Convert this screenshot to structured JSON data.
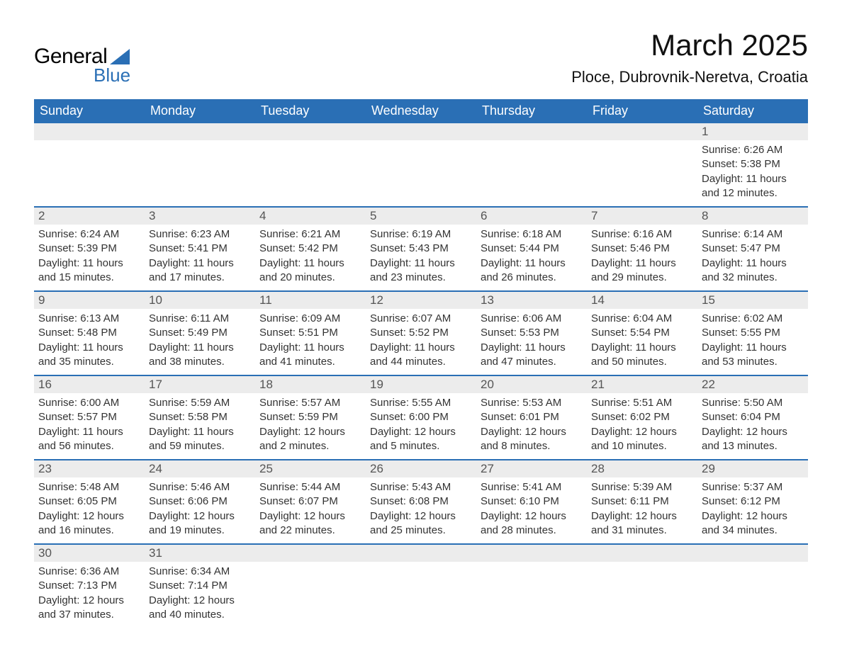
{
  "logo": {
    "general": "General",
    "blue": "Blue"
  },
  "title": "March 2025",
  "location": "Ploce, Dubrovnik-Neretva, Croatia",
  "colors": {
    "header_bg": "#2a6fb5",
    "header_fg": "#ffffff",
    "daynum_bg": "#ececec",
    "row_divider": "#2a6fb5",
    "text": "#333333",
    "logo_blue": "#2a6fb5"
  },
  "day_headers": [
    "Sunday",
    "Monday",
    "Tuesday",
    "Wednesday",
    "Thursday",
    "Friday",
    "Saturday"
  ],
  "weeks": [
    [
      null,
      null,
      null,
      null,
      null,
      null,
      {
        "n": "1",
        "sunrise": "6:26 AM",
        "sunset": "5:38 PM",
        "daylight": "11 hours and 12 minutes."
      }
    ],
    [
      {
        "n": "2",
        "sunrise": "6:24 AM",
        "sunset": "5:39 PM",
        "daylight": "11 hours and 15 minutes."
      },
      {
        "n": "3",
        "sunrise": "6:23 AM",
        "sunset": "5:41 PM",
        "daylight": "11 hours and 17 minutes."
      },
      {
        "n": "4",
        "sunrise": "6:21 AM",
        "sunset": "5:42 PM",
        "daylight": "11 hours and 20 minutes."
      },
      {
        "n": "5",
        "sunrise": "6:19 AM",
        "sunset": "5:43 PM",
        "daylight": "11 hours and 23 minutes."
      },
      {
        "n": "6",
        "sunrise": "6:18 AM",
        "sunset": "5:44 PM",
        "daylight": "11 hours and 26 minutes."
      },
      {
        "n": "7",
        "sunrise": "6:16 AM",
        "sunset": "5:46 PM",
        "daylight": "11 hours and 29 minutes."
      },
      {
        "n": "8",
        "sunrise": "6:14 AM",
        "sunset": "5:47 PM",
        "daylight": "11 hours and 32 minutes."
      }
    ],
    [
      {
        "n": "9",
        "sunrise": "6:13 AM",
        "sunset": "5:48 PM",
        "daylight": "11 hours and 35 minutes."
      },
      {
        "n": "10",
        "sunrise": "6:11 AM",
        "sunset": "5:49 PM",
        "daylight": "11 hours and 38 minutes."
      },
      {
        "n": "11",
        "sunrise": "6:09 AM",
        "sunset": "5:51 PM",
        "daylight": "11 hours and 41 minutes."
      },
      {
        "n": "12",
        "sunrise": "6:07 AM",
        "sunset": "5:52 PM",
        "daylight": "11 hours and 44 minutes."
      },
      {
        "n": "13",
        "sunrise": "6:06 AM",
        "sunset": "5:53 PM",
        "daylight": "11 hours and 47 minutes."
      },
      {
        "n": "14",
        "sunrise": "6:04 AM",
        "sunset": "5:54 PM",
        "daylight": "11 hours and 50 minutes."
      },
      {
        "n": "15",
        "sunrise": "6:02 AM",
        "sunset": "5:55 PM",
        "daylight": "11 hours and 53 minutes."
      }
    ],
    [
      {
        "n": "16",
        "sunrise": "6:00 AM",
        "sunset": "5:57 PM",
        "daylight": "11 hours and 56 minutes."
      },
      {
        "n": "17",
        "sunrise": "5:59 AM",
        "sunset": "5:58 PM",
        "daylight": "11 hours and 59 minutes."
      },
      {
        "n": "18",
        "sunrise": "5:57 AM",
        "sunset": "5:59 PM",
        "daylight": "12 hours and 2 minutes."
      },
      {
        "n": "19",
        "sunrise": "5:55 AM",
        "sunset": "6:00 PM",
        "daylight": "12 hours and 5 minutes."
      },
      {
        "n": "20",
        "sunrise": "5:53 AM",
        "sunset": "6:01 PM",
        "daylight": "12 hours and 8 minutes."
      },
      {
        "n": "21",
        "sunrise": "5:51 AM",
        "sunset": "6:02 PM",
        "daylight": "12 hours and 10 minutes."
      },
      {
        "n": "22",
        "sunrise": "5:50 AM",
        "sunset": "6:04 PM",
        "daylight": "12 hours and 13 minutes."
      }
    ],
    [
      {
        "n": "23",
        "sunrise": "5:48 AM",
        "sunset": "6:05 PM",
        "daylight": "12 hours and 16 minutes."
      },
      {
        "n": "24",
        "sunrise": "5:46 AM",
        "sunset": "6:06 PM",
        "daylight": "12 hours and 19 minutes."
      },
      {
        "n": "25",
        "sunrise": "5:44 AM",
        "sunset": "6:07 PM",
        "daylight": "12 hours and 22 minutes."
      },
      {
        "n": "26",
        "sunrise": "5:43 AM",
        "sunset": "6:08 PM",
        "daylight": "12 hours and 25 minutes."
      },
      {
        "n": "27",
        "sunrise": "5:41 AM",
        "sunset": "6:10 PM",
        "daylight": "12 hours and 28 minutes."
      },
      {
        "n": "28",
        "sunrise": "5:39 AM",
        "sunset": "6:11 PM",
        "daylight": "12 hours and 31 minutes."
      },
      {
        "n": "29",
        "sunrise": "5:37 AM",
        "sunset": "6:12 PM",
        "daylight": "12 hours and 34 minutes."
      }
    ],
    [
      {
        "n": "30",
        "sunrise": "6:36 AM",
        "sunset": "7:13 PM",
        "daylight": "12 hours and 37 minutes."
      },
      {
        "n": "31",
        "sunrise": "6:34 AM",
        "sunset": "7:14 PM",
        "daylight": "12 hours and 40 minutes."
      },
      null,
      null,
      null,
      null,
      null
    ]
  ],
  "labels": {
    "sunrise": "Sunrise: ",
    "sunset": "Sunset: ",
    "daylight": "Daylight: "
  }
}
